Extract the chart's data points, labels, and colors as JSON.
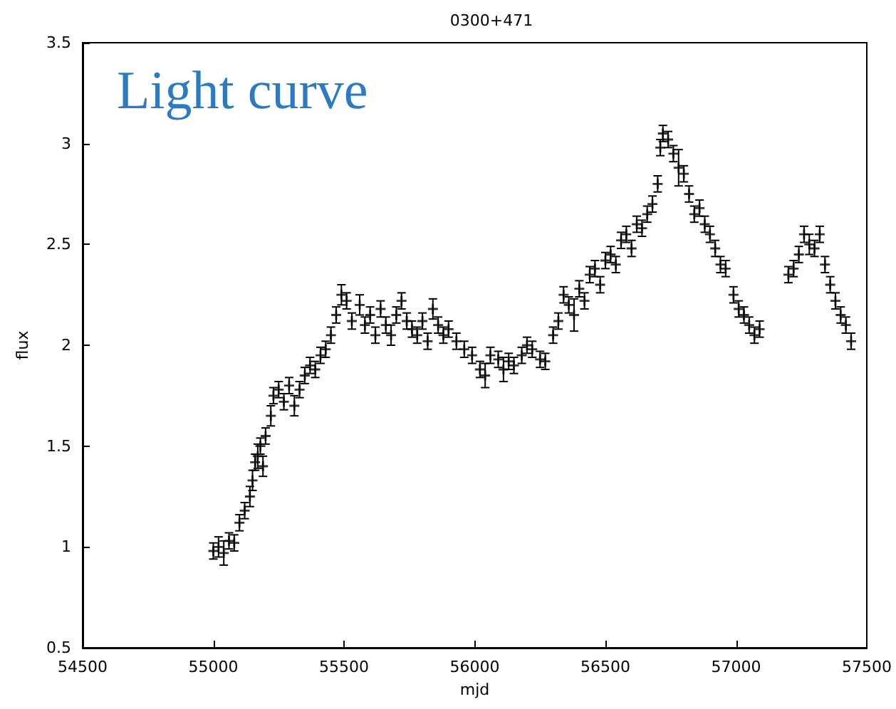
{
  "chart_data": {
    "type": "scatter",
    "title": "0300+471",
    "xlabel": "mjd",
    "ylabel": "flux",
    "annotations": [
      "Light curve"
    ],
    "marker": "cross",
    "xlim": [
      54500,
      57500
    ],
    "xticks": [
      54500,
      55000,
      55500,
      56000,
      56500,
      57000,
      57500
    ],
    "ylim": [
      0.5,
      3.5
    ],
    "yticks": [
      0.5,
      1.0,
      1.5,
      2.0,
      2.5,
      3.0,
      3.5
    ],
    "series": [
      {
        "color": "#000000",
        "x": [
          55000,
          55020,
          55040,
          55060,
          55080,
          55100,
          55120,
          55140,
          55150,
          55160,
          55170,
          55180,
          55190,
          55200,
          55220,
          55230,
          55250,
          55270,
          55290,
          55310,
          55330,
          55350,
          55370,
          55390,
          55410,
          55430,
          55450,
          55470,
          55490,
          55510,
          55530,
          55560,
          55580,
          55600,
          55620,
          55640,
          55660,
          55680,
          55700,
          55720,
          55740,
          55760,
          55780,
          55800,
          55820,
          55840,
          55860,
          55880,
          55900,
          55930,
          55960,
          55990,
          56020,
          56040,
          56060,
          56090,
          56110,
          56130,
          56150,
          56180,
          56200,
          56220,
          56250,
          56270,
          56300,
          56320,
          56340,
          56360,
          56380,
          56400,
          56420,
          56440,
          56460,
          56480,
          56500,
          56520,
          56540,
          56560,
          56580,
          56600,
          56620,
          56640,
          56660,
          56680,
          56700,
          56710,
          56720,
          56740,
          56760,
          56780,
          56800,
          56820,
          56840,
          56860,
          56880,
          56900,
          56920,
          56940,
          56960,
          56990,
          57010,
          57030,
          57050,
          57070,
          57090,
          57200,
          57220,
          57240,
          57260,
          57280,
          57300,
          57320,
          57340,
          57360,
          57380,
          57400,
          57420,
          57440
        ],
        "values": [
          0.98,
          1.0,
          0.97,
          1.03,
          1.02,
          1.12,
          1.18,
          1.25,
          1.33,
          1.42,
          1.45,
          1.5,
          1.4,
          1.55,
          1.65,
          1.75,
          1.78,
          1.72,
          1.8,
          1.7,
          1.78,
          1.85,
          1.9,
          1.88,
          1.95,
          1.98,
          2.05,
          2.15,
          2.25,
          2.22,
          2.12,
          2.2,
          2.1,
          2.15,
          2.05,
          2.18,
          2.1,
          2.05,
          2.15,
          2.22,
          2.12,
          2.08,
          2.05,
          2.12,
          2.02,
          2.18,
          2.1,
          2.05,
          2.08,
          2.02,
          1.98,
          1.95,
          1.88,
          1.85,
          1.95,
          1.93,
          1.88,
          1.92,
          1.9,
          1.95,
          2.0,
          1.98,
          1.93,
          1.92,
          2.05,
          2.12,
          2.25,
          2.2,
          2.15,
          2.28,
          2.22,
          2.35,
          2.38,
          2.3,
          2.42,
          2.45,
          2.4,
          2.52,
          2.55,
          2.48,
          2.6,
          2.58,
          2.65,
          2.7,
          2.8,
          2.98,
          3.05,
          3.02,
          2.95,
          2.88,
          2.85,
          2.75,
          2.65,
          2.68,
          2.6,
          2.55,
          2.48,
          2.4,
          2.38,
          2.25,
          2.18,
          2.15,
          2.1,
          2.05,
          2.08,
          2.35,
          2.38,
          2.45,
          2.55,
          2.5,
          2.48,
          2.55,
          2.4,
          2.3,
          2.22,
          2.15,
          2.1,
          2.02
        ],
        "errors": [
          0.04,
          0.05,
          0.06,
          0.04,
          0.04,
          0.04,
          0.04,
          0.05,
          0.05,
          0.04,
          0.06,
          0.04,
          0.05,
          0.04,
          0.05,
          0.04,
          0.04,
          0.04,
          0.04,
          0.05,
          0.04,
          0.04,
          0.04,
          0.04,
          0.04,
          0.04,
          0.04,
          0.04,
          0.05,
          0.04,
          0.04,
          0.05,
          0.04,
          0.04,
          0.04,
          0.04,
          0.04,
          0.05,
          0.04,
          0.04,
          0.04,
          0.04,
          0.04,
          0.04,
          0.04,
          0.05,
          0.04,
          0.04,
          0.04,
          0.04,
          0.04,
          0.04,
          0.04,
          0.06,
          0.04,
          0.04,
          0.06,
          0.04,
          0.04,
          0.04,
          0.04,
          0.04,
          0.04,
          0.04,
          0.04,
          0.04,
          0.04,
          0.04,
          0.08,
          0.04,
          0.04,
          0.04,
          0.04,
          0.04,
          0.04,
          0.04,
          0.04,
          0.04,
          0.04,
          0.04,
          0.04,
          0.04,
          0.04,
          0.04,
          0.04,
          0.04,
          0.04,
          0.04,
          0.04,
          0.09,
          0.04,
          0.04,
          0.04,
          0.04,
          0.04,
          0.04,
          0.04,
          0.04,
          0.04,
          0.04,
          0.04,
          0.04,
          0.04,
          0.04,
          0.04,
          0.04,
          0.04,
          0.04,
          0.04,
          0.05,
          0.04,
          0.04,
          0.04,
          0.04,
          0.04,
          0.04,
          0.04,
          0.04
        ]
      }
    ]
  }
}
